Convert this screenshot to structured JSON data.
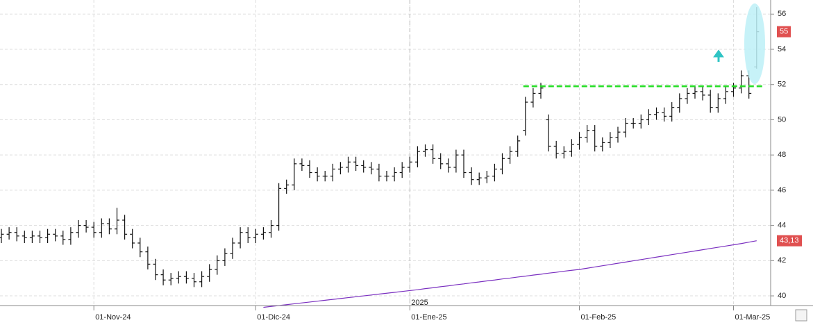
{
  "chart_data": {
    "type": "ohlc",
    "categories": [
      null,
      null,
      null,
      null,
      null,
      null,
      null,
      null,
      null,
      null,
      null,
      null,
      "01-Nov-24",
      null,
      null,
      null,
      null,
      null,
      null,
      null,
      null,
      null,
      null,
      null,
      null,
      null,
      null,
      null,
      null,
      null,
      null,
      null,
      null,
      "01-Dic-24",
      null,
      null,
      null,
      null,
      null,
      null,
      null,
      null,
      null,
      null,
      null,
      null,
      null,
      null,
      null,
      null,
      null,
      null,
      null,
      "01-Ene-25",
      null,
      null,
      null,
      null,
      null,
      null,
      null,
      null,
      null,
      null,
      null,
      null,
      null,
      null,
      null,
      null,
      null,
      null,
      null,
      null,
      null,
      "01-Feb-25",
      null,
      null,
      null,
      null,
      null,
      null,
      null,
      null,
      null,
      null,
      null,
      null,
      null,
      null,
      null,
      null,
      null,
      null,
      null,
      "01-Mar-25",
      null,
      null,
      null
    ],
    "year_label": {
      "index": 53,
      "label": "2025"
    },
    "open": [
      43.3,
      43.5,
      43.6,
      43.4,
      43.3,
      43.4,
      43.3,
      43.5,
      43.4,
      43.2,
      43.6,
      44.0,
      43.9,
      43.6,
      44.1,
      43.8,
      44.3,
      43.5,
      43.0,
      42.5,
      41.8,
      41.2,
      40.9,
      41.0,
      41.1,
      41.0,
      40.8,
      41.1,
      41.5,
      42.0,
      42.4,
      43.0,
      43.6,
      43.3,
      43.5,
      43.6,
      44.0,
      46.1,
      46.3,
      47.5,
      47.4,
      47.0,
      46.8,
      46.8,
      47.2,
      47.3,
      47.6,
      47.4,
      47.3,
      47.2,
      46.8,
      46.8,
      47.0,
      47.3,
      47.6,
      48.2,
      48.3,
      47.8,
      47.5,
      47.3,
      48.0,
      47.0,
      46.6,
      46.7,
      46.8,
      47.2,
      47.8,
      48.2,
      49.4,
      51.0,
      51.5,
      50.0,
      48.5,
      48.1,
      48.2,
      48.6,
      49.0,
      49.4,
      48.5,
      48.7,
      49.0,
      49.3,
      49.8,
      49.8,
      50.0,
      50.3,
      50.4,
      50.2,
      50.7,
      51.2,
      51.5,
      51.6,
      51.4,
      50.7,
      51.2,
      51.6,
      51.8,
      52.5,
      53.0
    ],
    "high": [
      43.8,
      43.9,
      43.9,
      43.7,
      43.7,
      43.7,
      43.8,
      43.8,
      43.7,
      43.9,
      44.3,
      44.3,
      44.2,
      44.4,
      44.4,
      45.0,
      44.6,
      43.8,
      43.3,
      42.8,
      42.1,
      41.5,
      41.3,
      41.4,
      41.4,
      41.3,
      41.4,
      41.8,
      42.3,
      42.7,
      43.3,
      43.9,
      43.9,
      43.8,
      43.9,
      44.3,
      46.4,
      46.6,
      47.8,
      47.8,
      47.7,
      47.3,
      47.1,
      47.5,
      47.6,
      47.9,
      47.9,
      47.7,
      47.6,
      47.5,
      47.1,
      47.3,
      47.6,
      47.9,
      48.5,
      48.6,
      48.6,
      48.1,
      47.8,
      48.3,
      48.3,
      47.3,
      47.0,
      47.1,
      47.5,
      48.1,
      48.5,
      49.1,
      51.3,
      51.8,
      52.1,
      50.3,
      48.8,
      48.5,
      48.9,
      49.3,
      49.7,
      49.7,
      49.0,
      49.3,
      49.6,
      50.1,
      50.1,
      50.3,
      50.6,
      50.7,
      50.7,
      51.0,
      51.5,
      51.8,
      51.9,
      51.9,
      51.7,
      51.5,
      51.9,
      52.1,
      52.8,
      52.8,
      56.4
    ],
    "low": [
      43.0,
      43.2,
      43.1,
      43.0,
      43.0,
      43.0,
      43.0,
      43.1,
      42.9,
      42.9,
      43.3,
      43.6,
      43.3,
      43.3,
      43.5,
      43.5,
      43.2,
      42.7,
      42.2,
      41.5,
      40.9,
      40.6,
      40.6,
      40.7,
      40.7,
      40.5,
      40.5,
      40.8,
      41.2,
      41.7,
      42.1,
      42.7,
      43.0,
      43.0,
      43.2,
      43.3,
      43.7,
      45.8,
      46.0,
      47.1,
      46.7,
      46.5,
      46.5,
      46.5,
      46.9,
      47.0,
      47.1,
      47.0,
      46.9,
      46.5,
      46.5,
      46.5,
      46.7,
      47.0,
      47.3,
      47.9,
      47.5,
      47.2,
      47.0,
      47.0,
      46.7,
      46.3,
      46.3,
      46.4,
      46.5,
      46.9,
      47.5,
      47.9,
      49.1,
      50.7,
      51.2,
      48.2,
      47.8,
      47.8,
      47.9,
      48.3,
      48.7,
      48.2,
      48.2,
      48.4,
      48.7,
      49.0,
      49.5,
      49.5,
      49.7,
      50.0,
      49.9,
      49.9,
      50.4,
      50.9,
      51.2,
      51.1,
      50.4,
      50.4,
      50.9,
      51.3,
      51.5,
      51.2,
      52.9
    ],
    "close": [
      43.5,
      43.6,
      43.4,
      43.3,
      43.4,
      43.3,
      43.5,
      43.4,
      43.2,
      43.6,
      44.0,
      43.9,
      43.6,
      44.1,
      43.8,
      44.3,
      43.5,
      43.0,
      42.5,
      41.8,
      41.2,
      40.9,
      41.0,
      41.1,
      41.0,
      40.8,
      41.1,
      41.5,
      42.0,
      42.4,
      43.0,
      43.6,
      43.3,
      43.5,
      43.6,
      44.0,
      46.1,
      46.3,
      47.5,
      47.4,
      47.0,
      46.8,
      46.8,
      47.2,
      47.3,
      47.6,
      47.4,
      47.3,
      47.2,
      46.8,
      46.8,
      47.0,
      47.3,
      47.6,
      48.2,
      48.3,
      47.8,
      47.5,
      47.3,
      48.0,
      47.0,
      46.6,
      46.7,
      46.8,
      47.2,
      47.8,
      48.2,
      48.8,
      51.0,
      51.5,
      51.8,
      48.5,
      48.1,
      48.2,
      48.6,
      49.0,
      49.4,
      48.5,
      48.7,
      49.0,
      49.3,
      49.8,
      49.8,
      50.0,
      50.3,
      50.4,
      50.2,
      50.7,
      51.2,
      51.5,
      51.6,
      51.4,
      50.7,
      51.2,
      51.6,
      51.8,
      52.5,
      51.5,
      55
    ],
    "bar_color": "#111111",
    "last_color": "#e05050",
    "moving_average": {
      "color": "#7a2fc0",
      "value_label": "43,13",
      "values": [
        null,
        null,
        null,
        null,
        null,
        null,
        null,
        null,
        null,
        null,
        null,
        null,
        null,
        null,
        null,
        null,
        null,
        null,
        null,
        null,
        null,
        null,
        null,
        null,
        null,
        null,
        null,
        null,
        null,
        null,
        null,
        null,
        null,
        null,
        39.35,
        39.4,
        39.45,
        39.5,
        39.55,
        39.6,
        39.65,
        39.7,
        39.75,
        39.8,
        39.85,
        39.9,
        39.95,
        40.0,
        40.05,
        40.1,
        40.15,
        40.2,
        40.25,
        40.3,
        40.35,
        40.41,
        40.46,
        40.52,
        40.57,
        40.63,
        40.68,
        40.74,
        40.79,
        40.85,
        40.9,
        40.96,
        41.01,
        41.07,
        41.12,
        41.18,
        41.23,
        41.29,
        41.34,
        41.4,
        41.45,
        41.5,
        41.57,
        41.64,
        41.71,
        41.78,
        41.85,
        41.92,
        41.99,
        42.06,
        42.13,
        42.2,
        42.27,
        42.34,
        42.41,
        42.48,
        42.55,
        42.62,
        42.69,
        42.76,
        42.83,
        42.9,
        42.97,
        43.05,
        43.13
      ]
    },
    "resistance": {
      "value": 51.9,
      "from": 68,
      "color": "#22dd22"
    },
    "ylim": [
      39.45,
      56.8
    ],
    "yticks": [
      40,
      42,
      44,
      46,
      48,
      50,
      52,
      54,
      56
    ],
    "grid": true
  }
}
